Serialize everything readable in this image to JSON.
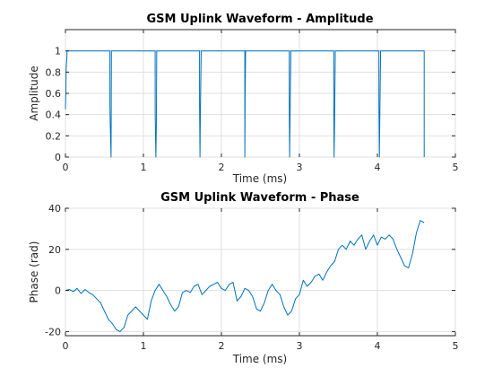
{
  "chart_data": [
    {
      "type": "line",
      "title": "GSM Uplink Waveform - Amplitude",
      "xlabel": "Time (ms)",
      "ylabel": "Amplitude",
      "xlim": [
        0,
        5
      ],
      "ylim": [
        0,
        1.2
      ],
      "xticks": [
        0,
        1,
        2,
        3,
        4,
        5
      ],
      "yticks": [
        0,
        0.2,
        0.4,
        0.6,
        0.8,
        1
      ],
      "grid": true,
      "color": "#0072bd",
      "series": [
        {
          "x": [
            0,
            0.005,
            0.01,
            0.02,
            0.02,
            0.57,
            0.57,
            0.575,
            0.585,
            0.59,
            0.59,
            1.15,
            1.15,
            1.16,
            1.165,
            1.17,
            1.17,
            1.72,
            1.72,
            1.725,
            1.73,
            1.74,
            1.74,
            2.3,
            2.3,
            2.305,
            2.31,
            2.31,
            2.87,
            2.87,
            2.875,
            2.88,
            2.89,
            2.89,
            3.44,
            3.44,
            3.445,
            3.45,
            3.46,
            3.46,
            4.02,
            4.02,
            4.025,
            4.03,
            4.04,
            4.04,
            4.6,
            4.6
          ],
          "y": [
            0.45,
            0.6,
            0.85,
            0.95,
            1,
            1,
            0.5,
            0.3,
            0,
            0.95,
            1,
            1,
            0.4,
            0,
            0.3,
            0.9,
            1,
            1,
            0.5,
            0,
            0.4,
            0.95,
            1,
            1,
            0,
            0.6,
            1,
            1,
            1,
            0.5,
            0,
            0.4,
            0.95,
            1,
            1,
            0.5,
            0,
            0.3,
            0.95,
            1,
            1,
            0.5,
            0,
            0.3,
            0.95,
            1,
            1,
            0
          ]
        }
      ]
    },
    {
      "type": "line",
      "title": "GSM Uplink Waveform - Phase",
      "xlabel": "Time (ms)",
      "ylabel": "Phase (rad)",
      "xlim": [
        0,
        5
      ],
      "ylim": [
        -22,
        40
      ],
      "xticks": [
        0,
        1,
        2,
        3,
        4,
        5
      ],
      "yticks": [
        -20,
        0,
        20,
        40
      ],
      "grid": true,
      "color": "#0072bd",
      "series": [
        {
          "x": [
            0,
            0.05,
            0.1,
            0.15,
            0.2,
            0.25,
            0.3,
            0.35,
            0.4,
            0.45,
            0.5,
            0.55,
            0.6,
            0.65,
            0.7,
            0.75,
            0.8,
            0.85,
            0.9,
            0.95,
            1.0,
            1.05,
            1.1,
            1.15,
            1.2,
            1.25,
            1.3,
            1.35,
            1.4,
            1.45,
            1.5,
            1.55,
            1.6,
            1.65,
            1.7,
            1.75,
            1.8,
            1.85,
            1.9,
            1.95,
            2.0,
            2.05,
            2.1,
            2.15,
            2.2,
            2.25,
            2.3,
            2.35,
            2.4,
            2.45,
            2.5,
            2.55,
            2.6,
            2.65,
            2.7,
            2.75,
            2.8,
            2.85,
            2.9,
            2.95,
            3.0,
            3.05,
            3.1,
            3.15,
            3.2,
            3.25,
            3.3,
            3.35,
            3.4,
            3.45,
            3.5,
            3.55,
            3.6,
            3.65,
            3.7,
            3.75,
            3.8,
            3.85,
            3.9,
            3.95,
            4.0,
            4.05,
            4.1,
            4.15,
            4.2,
            4.25,
            4.3,
            4.35,
            4.4,
            4.45,
            4.5,
            4.55,
            4.6
          ],
          "y": [
            0,
            0.5,
            -0.5,
            1,
            -1.5,
            0.5,
            -1,
            -2,
            -4,
            -6,
            -10,
            -14,
            -16,
            -19,
            -20,
            -18,
            -12,
            -10,
            -8,
            -10,
            -12,
            -14,
            -5,
            0,
            3,
            0,
            -3,
            -7,
            -10,
            -8,
            -1,
            0,
            -1,
            2,
            3,
            -2,
            0,
            2,
            3,
            4,
            1,
            0,
            3,
            4,
            -5,
            -3,
            1,
            0,
            -3,
            -9,
            -10,
            -6,
            0,
            3,
            0,
            -2,
            -8,
            -12,
            -10,
            -4,
            -2,
            5,
            2,
            4,
            7,
            8,
            5,
            9,
            12,
            14,
            20,
            22,
            20,
            24,
            22,
            25,
            27,
            20,
            24,
            27,
            22,
            26,
            25,
            27,
            25,
            20,
            16,
            12,
            11,
            18,
            28,
            34,
            33
          ]
        }
      ]
    }
  ]
}
